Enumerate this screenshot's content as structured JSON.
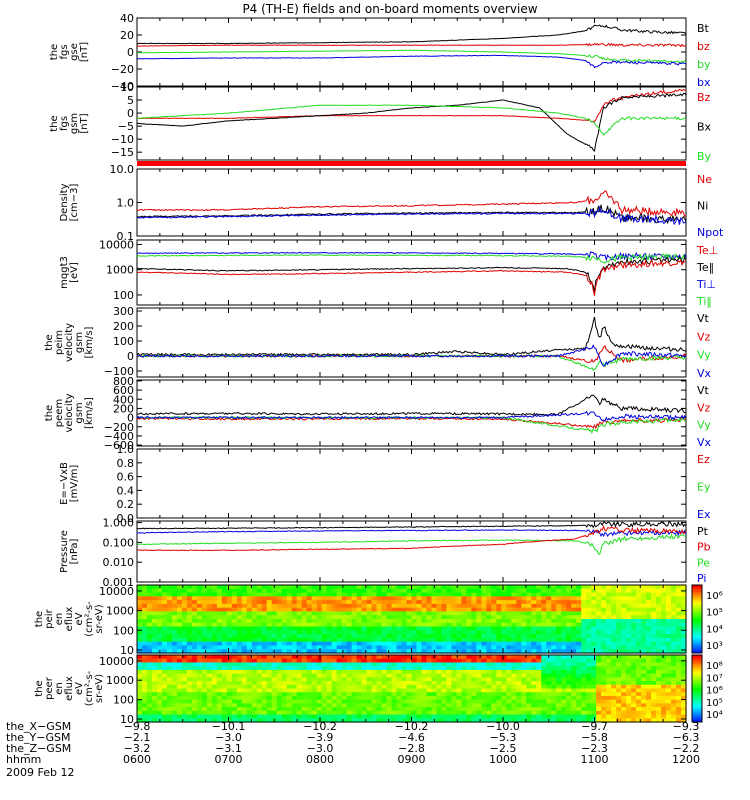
{
  "title": "P4 (TH-E) fields and on-board moments overview",
  "date_label": "2009 Feb 12",
  "colors": {
    "black": "#000000",
    "red": "#e00000",
    "green": "#22dd22",
    "blue": "#0000e0"
  },
  "chart_data": [
    {
      "id": "fgs",
      "type": "line",
      "ylabel": [
        "the",
        "fgs",
        "gse",
        "[nT]"
      ],
      "ylim": [
        -40,
        40
      ],
      "ticks": [
        "40",
        "20",
        "0",
        "−20",
        "−40"
      ],
      "tick_values": [
        40,
        20,
        0,
        -20,
        -40
      ],
      "legend": [
        "Bt",
        "bz",
        "by",
        "bx"
      ],
      "legend_colors": [
        "black",
        "red",
        "green",
        "blue"
      ],
      "series": [
        {
          "name": "Bt",
          "color": "black",
          "x": [
            6.0,
            7.0,
            8.0,
            9.0,
            10.0,
            10.6,
            10.9,
            11.0,
            11.1,
            11.3,
            11.6,
            12.0
          ],
          "y": [
            10,
            10,
            11,
            12,
            16,
            20,
            25,
            30,
            31,
            26,
            24,
            22
          ]
        },
        {
          "name": "bz",
          "color": "red",
          "x": [
            6.0,
            7.0,
            8.0,
            9.0,
            10.0,
            10.6,
            11.0,
            11.1,
            11.3,
            12.0
          ],
          "y": [
            7,
            8,
            8,
            8,
            8,
            8,
            9,
            9,
            8,
            8
          ]
        },
        {
          "name": "by",
          "color": "green",
          "x": [
            6.0,
            7.0,
            8.0,
            9.0,
            10.0,
            10.6,
            11.0,
            11.1,
            11.3,
            11.6,
            12.0
          ],
          "y": [
            -1,
            0,
            1,
            2,
            0,
            -2,
            -5,
            -8,
            -10,
            -10,
            -12
          ]
        },
        {
          "name": "bx",
          "color": "blue",
          "x": [
            6.0,
            7.0,
            8.0,
            9.0,
            10.0,
            10.6,
            10.9,
            11.0,
            11.1,
            11.3,
            12.0
          ],
          "y": [
            -8,
            -7,
            -7,
            -5,
            -4,
            -6,
            -10,
            -18,
            -12,
            -12,
            -14
          ]
        }
      ]
    },
    {
      "id": "fgsgsm",
      "type": "line",
      "ylabel": [
        "the",
        "fgs",
        "gsm",
        "[nT]"
      ],
      "ylim": [
        -18,
        10
      ],
      "ticks": [
        "10",
        "5",
        "0",
        "−5",
        "−10",
        "−15"
      ],
      "tick_values": [
        10,
        5,
        0,
        -5,
        -10,
        -15
      ],
      "legend": [
        "Bz",
        "Bx",
        "By"
      ],
      "legend_colors": [
        "red",
        "black",
        "green"
      ],
      "series": [
        {
          "name": "Bz",
          "color": "red",
          "x": [
            6.0,
            7.0,
            8.0,
            9.0,
            10.0,
            10.6,
            11.0,
            11.1,
            11.2,
            11.5,
            12.0
          ],
          "y": [
            -2,
            -2,
            -1,
            -1,
            -1,
            -2,
            -3,
            3,
            5,
            7,
            9
          ]
        },
        {
          "name": "Bx",
          "color": "black",
          "x": [
            6.0,
            6.5,
            7.0,
            8.0,
            8.5,
            9.0,
            9.5,
            10.0,
            10.4,
            10.7,
            10.9,
            11.0,
            11.1,
            11.3,
            12.0
          ],
          "y": [
            -4,
            -5,
            -3,
            -1,
            0,
            2,
            3,
            5,
            2,
            -8,
            -12,
            -14,
            2,
            6,
            7
          ]
        },
        {
          "name": "By",
          "color": "green",
          "x": [
            6.0,
            7.0,
            8.0,
            9.0,
            10.0,
            10.6,
            10.9,
            11.0,
            11.1,
            11.3,
            12.0
          ],
          "y": [
            -2,
            0,
            3,
            3,
            2,
            0,
            -2,
            -4,
            -8,
            -2,
            -2
          ]
        }
      ]
    },
    {
      "id": "density",
      "type": "line",
      "scale": "log",
      "ylabel": [
        "Density",
        "[cm−3]"
      ],
      "ylim": [
        0.1,
        10
      ],
      "ticks": [
        "10.0",
        "1.0",
        "0.1"
      ],
      "tick_values": [
        10,
        1,
        0.1
      ],
      "legend": [
        "Ne",
        "Ni",
        "Npot"
      ],
      "legend_colors": [
        "red",
        "black",
        "blue"
      ],
      "series": [
        {
          "name": "Ne",
          "color": "red",
          "x": [
            6.0,
            7.0,
            8.0,
            9.0,
            10.0,
            10.8,
            11.0,
            11.1,
            11.3,
            12.0
          ],
          "y": [
            0.6,
            0.6,
            0.75,
            0.8,
            0.9,
            1.0,
            1.2,
            1.8,
            0.6,
            0.5
          ]
        },
        {
          "name": "Ni",
          "color": "black",
          "x": [
            6.0,
            7.0,
            8.0,
            9.0,
            10.0,
            10.8,
            11.0,
            11.1,
            11.3,
            12.0
          ],
          "y": [
            0.38,
            0.4,
            0.45,
            0.48,
            0.5,
            0.5,
            0.55,
            0.7,
            0.35,
            0.3
          ]
        },
        {
          "name": "Npot",
          "color": "blue",
          "x": [
            6.0,
            7.0,
            8.0,
            9.0,
            10.0,
            10.8,
            11.0,
            11.1,
            11.3,
            12.0
          ],
          "y": [
            0.35,
            0.38,
            0.42,
            0.45,
            0.47,
            0.47,
            0.5,
            0.6,
            0.32,
            0.28
          ]
        }
      ]
    },
    {
      "id": "temp",
      "type": "line",
      "scale": "log",
      "ylabel": [
        "mqgt3",
        "[eV]"
      ],
      "ylim": [
        40,
        15000
      ],
      "ticks": [
        "10000",
        "1000",
        "100"
      ],
      "tick_values": [
        10000,
        1000,
        100
      ],
      "legend": [
        "Te⊥",
        "Te‖",
        "Ti⊥",
        "Ti‖"
      ],
      "legend_colors": [
        "red",
        "black",
        "blue",
        "green"
      ],
      "series": [
        {
          "name": "Ti⊥",
          "color": "blue",
          "x": [
            6.0,
            7.0,
            8.0,
            9.0,
            10.0,
            10.7,
            11.0,
            11.1,
            11.3,
            12.0
          ],
          "y": [
            4500,
            4600,
            4700,
            4600,
            4400,
            4200,
            3800,
            3000,
            3500,
            3500
          ]
        },
        {
          "name": "Ti‖",
          "color": "green",
          "x": [
            6.0,
            7.0,
            8.0,
            9.0,
            10.0,
            10.7,
            11.0,
            11.1,
            11.3,
            12.0
          ],
          "y": [
            3500,
            3700,
            3800,
            3700,
            3600,
            3400,
            3000,
            2300,
            3000,
            3200
          ]
        },
        {
          "name": "Te‖",
          "color": "black",
          "x": [
            6.0,
            7.0,
            8.0,
            9.0,
            10.0,
            10.7,
            10.9,
            11.0,
            11.1,
            11.3,
            12.0
          ],
          "y": [
            1100,
            900,
            1000,
            1100,
            1200,
            1100,
            800,
            150,
            1200,
            2000,
            2500
          ]
        },
        {
          "name": "Te⊥",
          "color": "red",
          "x": [
            6.0,
            7.0,
            8.0,
            9.0,
            10.0,
            10.7,
            10.9,
            11.0,
            11.1,
            11.3,
            12.0
          ],
          "y": [
            800,
            650,
            700,
            800,
            900,
            800,
            600,
            120,
            900,
            1500,
            2000
          ]
        }
      ]
    },
    {
      "id": "velgsm",
      "type": "line",
      "ylabel": [
        "the",
        "peim",
        "velocity",
        "gsm",
        "[km/s]"
      ],
      "ylim": [
        -140,
        320
      ],
      "ticks": [
        "300",
        "200",
        "100",
        "0",
        "−100"
      ],
      "tick_values": [
        300,
        200,
        100,
        0,
        -100
      ],
      "legend": [
        "Vt",
        "Vz",
        "Vy",
        "Vx"
      ],
      "legend_colors": [
        "black",
        "red",
        "green",
        "blue"
      ],
      "series": [
        {
          "name": "Vt",
          "color": "black",
          "x": [
            6.0,
            7.0,
            8.0,
            9.0,
            9.5,
            10.0,
            10.6,
            10.9,
            11.0,
            11.05,
            11.1,
            11.2,
            11.4,
            12.0
          ],
          "y": [
            10,
            10,
            10,
            10,
            30,
            10,
            40,
            50,
            250,
            100,
            200,
            80,
            60,
            40
          ]
        },
        {
          "name": "Vz",
          "color": "red",
          "x": [
            6.0,
            7.0,
            8.0,
            9.0,
            10.0,
            10.6,
            11.0,
            11.1,
            11.3,
            12.0
          ],
          "y": [
            0,
            0,
            0,
            0,
            0,
            0,
            -40,
            60,
            -30,
            0
          ]
        },
        {
          "name": "Vy",
          "color": "green",
          "x": [
            6.0,
            7.0,
            8.0,
            9.0,
            10.0,
            10.6,
            11.0,
            11.05,
            11.1,
            11.3,
            12.0
          ],
          "y": [
            0,
            0,
            0,
            0,
            0,
            0,
            -90,
            -30,
            -60,
            -20,
            -10
          ]
        },
        {
          "name": "Vx",
          "color": "blue",
          "x": [
            6.0,
            7.0,
            8.0,
            9.0,
            10.0,
            10.6,
            11.0,
            11.1,
            11.3,
            12.0
          ],
          "y": [
            0,
            0,
            0,
            0,
            0,
            0,
            60,
            -60,
            20,
            0
          ]
        }
      ]
    },
    {
      "id": "velgsm2",
      "type": "line",
      "ylabel": [
        "the",
        "peem",
        "velocity",
        "gsm",
        "[km/s]"
      ],
      "ylim": [
        -620,
        820
      ],
      "ticks": [
        "800",
        "600",
        "400",
        "200",
        "0",
        "−200",
        "−400",
        "−600"
      ],
      "tick_values": [
        800,
        600,
        400,
        200,
        0,
        -200,
        -400,
        -600
      ],
      "legend": [
        "Vt",
        "Vz",
        "Vy",
        "Vx"
      ],
      "legend_colors": [
        "black",
        "red",
        "green",
        "blue"
      ],
      "series": [
        {
          "name": "Vt",
          "color": "black",
          "x": [
            6.0,
            7.0,
            8.0,
            9.0,
            10.0,
            10.6,
            11.0,
            11.05,
            11.1,
            11.3,
            12.0
          ],
          "y": [
            80,
            90,
            80,
            90,
            80,
            70,
            500,
            300,
            400,
            200,
            150
          ]
        },
        {
          "name": "Vz",
          "color": "red",
          "x": [
            6.0,
            7.0,
            8.0,
            9.0,
            10.0,
            11.0,
            11.1,
            11.3,
            12.0
          ],
          "y": [
            -20,
            -30,
            -30,
            -20,
            -30,
            -200,
            -100,
            -80,
            -50
          ]
        },
        {
          "name": "Vy",
          "color": "green",
          "x": [
            6.0,
            7.0,
            8.0,
            9.0,
            10.0,
            11.0,
            11.1,
            11.3,
            12.0
          ],
          "y": [
            0,
            0,
            0,
            0,
            0,
            -300,
            -150,
            -100,
            -50
          ]
        },
        {
          "name": "Vx",
          "color": "blue",
          "x": [
            6.0,
            7.0,
            8.0,
            9.0,
            10.0,
            11.0,
            11.1,
            11.3,
            12.0
          ],
          "y": [
            0,
            0,
            0,
            0,
            0,
            100,
            -50,
            30,
            0
          ]
        }
      ]
    },
    {
      "id": "efield",
      "type": "line",
      "ylabel": [
        "E=−VxB",
        "[mV/m]"
      ],
      "ylim": [
        0,
        1
      ],
      "ticks": [
        "1.0",
        "0.8",
        "0.6",
        "0.4",
        "0.2",
        "0.0"
      ],
      "tick_values": [
        1,
        0.8,
        0.6,
        0.4,
        0.2,
        0
      ],
      "legend": [
        "Ez",
        "Ey",
        "Ex"
      ],
      "legend_colors": [
        "red",
        "green",
        "blue"
      ],
      "series": []
    },
    {
      "id": "pressure",
      "type": "line",
      "scale": "log",
      "ylabel": [
        "Pressure",
        "[nPa]"
      ],
      "ylim": [
        0.001,
        1.2
      ],
      "ticks": [
        "1.000",
        "0.100",
        "0.010",
        "0.001"
      ],
      "tick_values": [
        1,
        0.1,
        0.01,
        0.001
      ],
      "legend": [
        "Pt",
        "Pb",
        "Pe",
        "Pi"
      ],
      "legend_colors": [
        "black",
        "red",
        "green",
        "blue"
      ],
      "series": [
        {
          "name": "Pt",
          "color": "black",
          "x": [
            6.0,
            7.0,
            8.0,
            9.0,
            10.0,
            10.8,
            11.0,
            11.1,
            11.3,
            12.0
          ],
          "y": [
            0.5,
            0.52,
            0.55,
            0.6,
            0.65,
            0.7,
            0.75,
            0.9,
            0.8,
            0.85
          ]
        },
        {
          "name": "Pi",
          "color": "blue",
          "x": [
            6.0,
            7.0,
            8.0,
            9.0,
            10.0,
            10.8,
            11.0,
            11.1,
            11.3,
            12.0
          ],
          "y": [
            0.3,
            0.35,
            0.38,
            0.4,
            0.42,
            0.4,
            0.35,
            0.25,
            0.3,
            0.3
          ]
        },
        {
          "name": "Pe",
          "color": "green",
          "x": [
            6.0,
            7.0,
            8.0,
            9.0,
            10.0,
            10.8,
            11.0,
            11.05,
            11.1,
            11.3,
            12.0
          ],
          "y": [
            0.08,
            0.09,
            0.1,
            0.12,
            0.13,
            0.12,
            0.06,
            0.02,
            0.08,
            0.15,
            0.2
          ]
        },
        {
          "name": "Pb",
          "color": "red",
          "x": [
            6.0,
            7.0,
            8.0,
            9.0,
            10.0,
            10.8,
            11.0,
            11.1,
            11.3,
            12.0
          ],
          "y": [
            0.04,
            0.04,
            0.045,
            0.05,
            0.08,
            0.15,
            0.3,
            0.5,
            0.4,
            0.35
          ]
        }
      ]
    },
    {
      "id": "spec_ion",
      "type": "heatmap",
      "ylabel": [
        "the",
        "peir",
        "en",
        "eflux",
        "eV",
        "(cm²-s-",
        "sr-eV)"
      ],
      "ticks": [
        "10000",
        "1000",
        "100",
        "10"
      ],
      "tick_values": [
        10000,
        1000,
        100,
        10
      ],
      "colorbar_ticks": [
        "10⁶",
        "10⁵",
        "10⁴",
        "10³"
      ]
    },
    {
      "id": "spec_ele",
      "type": "heatmap",
      "ylabel": [
        "the",
        "peer",
        "en",
        "eflux",
        "eV",
        "(cm²-s-",
        "sr-eV)"
      ],
      "ticks": [
        "10000",
        "1000",
        "100",
        "10"
      ],
      "tick_values": [
        10000,
        1000,
        100,
        10
      ],
      "colorbar_ticks": [
        "10⁸",
        "10⁷",
        "10⁶",
        "10⁵",
        "10⁴"
      ]
    }
  ],
  "xaxis": {
    "row_labels": [
      "the_X−GSM",
      "the_Y−GSM",
      "the_Z−GSM",
      "hhmm"
    ],
    "columns": [
      [
        "−9.8",
        "−2.1",
        "−3.2",
        "0600"
      ],
      [
        "−10.1",
        "−3.0",
        "−3.1",
        "0700"
      ],
      [
        "−10.2",
        "−3.9",
        "−3.0",
        "0800"
      ],
      [
        "−10.2",
        "−4.6",
        "−2.8",
        "0900"
      ],
      [
        "−10.0",
        "−5.3",
        "−2.5",
        "1000"
      ],
      [
        "−9.7",
        "−5.8",
        "−2.3",
        "1100"
      ],
      [
        "−9.3",
        "−6.3",
        "−2.2",
        "1200"
      ]
    ],
    "hours": [
      6,
      7,
      8,
      9,
      10,
      11,
      12
    ]
  }
}
